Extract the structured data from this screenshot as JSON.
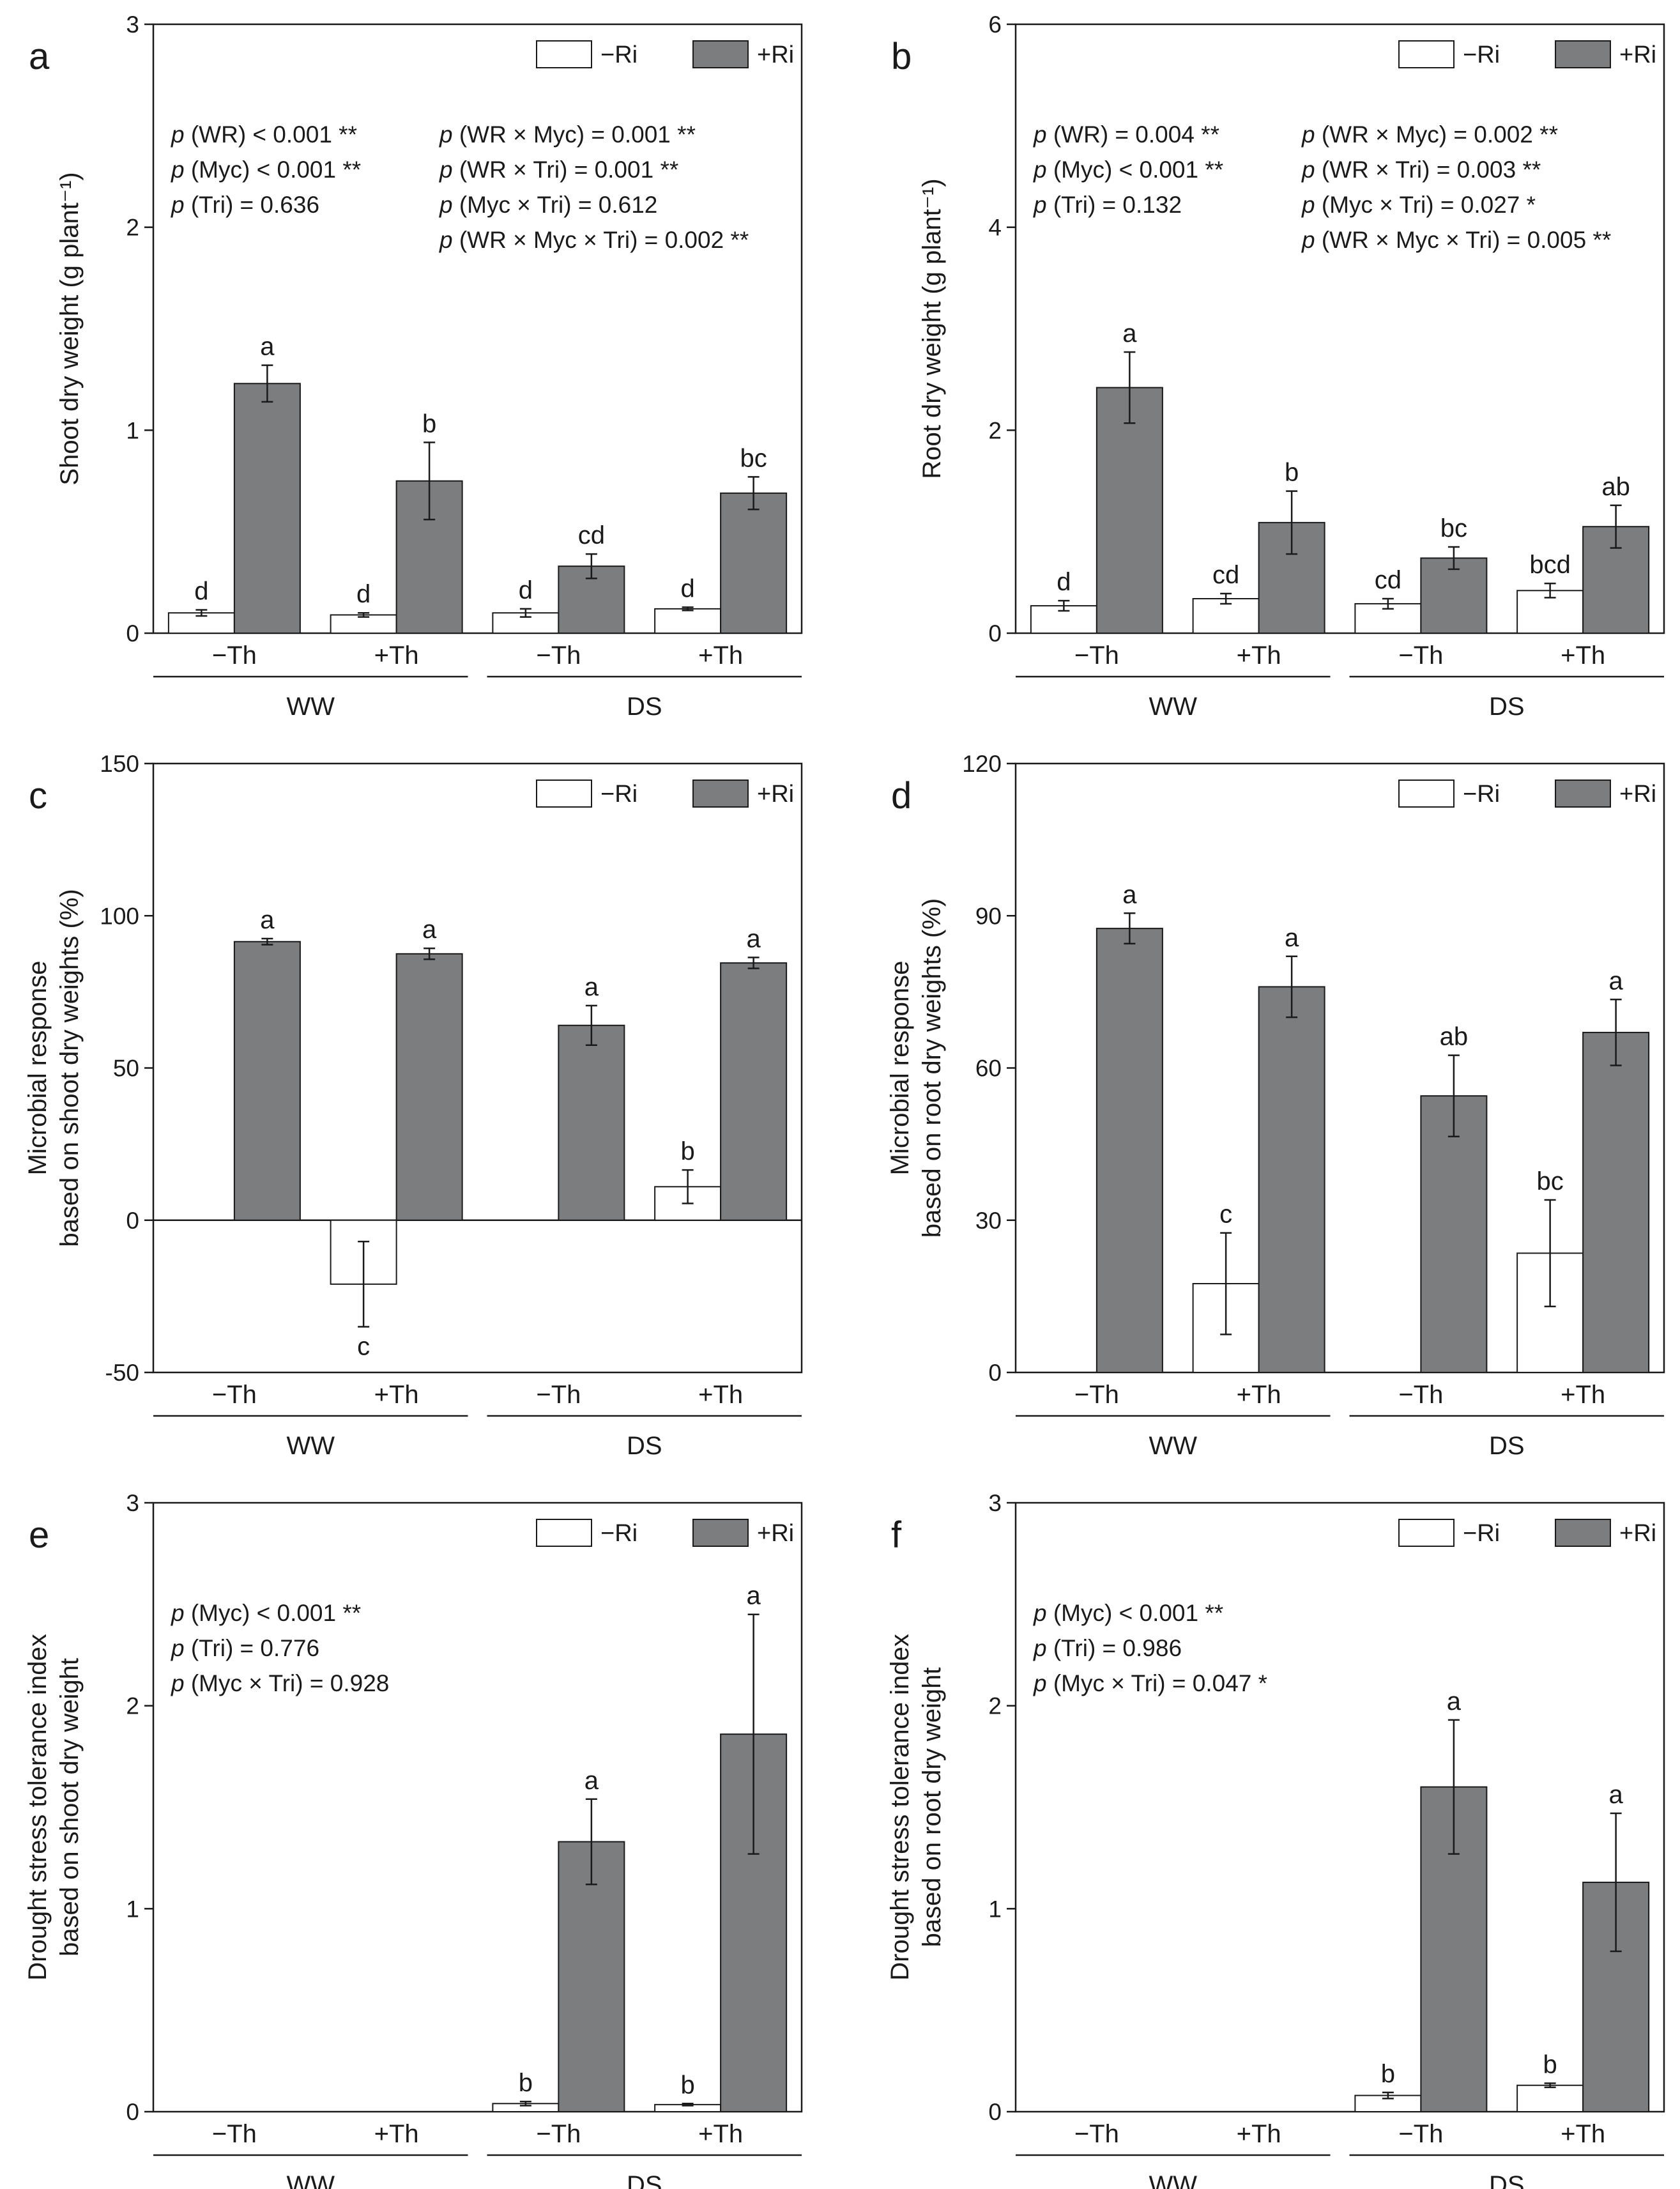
{
  "figure": {
    "series_colors": {
      "-Ri": "#ffffff",
      "+Ri": "#7b7d7f"
    },
    "bar_stroke": "#1a1a1a"
  },
  "chart_data": [
    {
      "id": "a",
      "type": "bar",
      "panel_label": "a",
      "ylabel": "Shoot dry weight (g plant⁻¹)",
      "ylim": [
        0,
        3
      ],
      "yticks": [
        0,
        1,
        2,
        3
      ],
      "yticklabels": [
        "0",
        "1",
        "2",
        "3"
      ],
      "categories": [
        "−Th",
        "+Th",
        "−Th",
        "+Th"
      ],
      "groups": [
        {
          "label": "WW",
          "categories": [
            0,
            1
          ]
        },
        {
          "label": "DS",
          "categories": [
            2,
            3
          ]
        }
      ],
      "legend": [
        "−Ri",
        "+Ri"
      ],
      "series": [
        {
          "name": "−Ri",
          "values": [
            0.1,
            0.09,
            0.1,
            0.12
          ],
          "errors": [
            0.015,
            0.01,
            0.02,
            0.008
          ],
          "letters": [
            "d",
            "d",
            "d",
            "d"
          ]
        },
        {
          "name": "+Ri",
          "values": [
            1.23,
            0.75,
            0.33,
            0.69
          ],
          "errors": [
            0.09,
            0.19,
            0.06,
            0.08
          ],
          "letters": [
            "a",
            "b",
            "cd",
            "bc"
          ]
        }
      ],
      "stats_left": [
        "p (WR) < 0.001 **",
        "p (Myc) < 0.001 **",
        "p (Tri) = 0.636"
      ],
      "stats_right": [
        "p (WR × Myc) = 0.001 **",
        "p (WR × Tri) = 0.001 **",
        "p (Myc × Tri) = 0.612",
        "p (WR × Myc × Tri) = 0.002 **"
      ]
    },
    {
      "id": "b",
      "type": "bar",
      "panel_label": "b",
      "ylabel": "Root dry weight (g plant⁻¹)",
      "ylim": [
        0,
        6
      ],
      "yticks": [
        0,
        2,
        4,
        6
      ],
      "yticklabels": [
        "0",
        "2",
        "4",
        "6"
      ],
      "categories": [
        "−Th",
        "+Th",
        "−Th",
        "+Th"
      ],
      "groups": [
        {
          "label": "WW",
          "categories": [
            0,
            1
          ]
        },
        {
          "label": "DS",
          "categories": [
            2,
            3
          ]
        }
      ],
      "legend": [
        "−Ri",
        "+Ri"
      ],
      "series": [
        {
          "name": "−Ri",
          "values": [
            0.27,
            0.34,
            0.29,
            0.42
          ],
          "errors": [
            0.05,
            0.05,
            0.05,
            0.07
          ],
          "letters": [
            "d",
            "cd",
            "cd",
            "bcd"
          ]
        },
        {
          "name": "+Ri",
          "values": [
            2.42,
            1.09,
            0.74,
            1.05
          ],
          "errors": [
            0.35,
            0.31,
            0.11,
            0.21
          ],
          "letters": [
            "a",
            "b",
            "bc",
            "ab"
          ]
        }
      ],
      "stats_left": [
        "p (WR) = 0.004 **",
        "p (Myc) < 0.001 **",
        "p (Tri) = 0.132"
      ],
      "stats_right": [
        "p (WR × Myc) = 0.002 **",
        "p (WR × Tri) = 0.003 **",
        "p (Myc × Tri) = 0.027 *",
        "p (WR × Myc × Tri) = 0.005 **"
      ]
    },
    {
      "id": "c",
      "type": "bar",
      "panel_label": "c",
      "ylabel_lines": [
        "Microbial response",
        "based on shoot dry weights (%)"
      ],
      "ylim": [
        -50,
        150
      ],
      "yticks": [
        -50,
        0,
        50,
        100,
        150
      ],
      "yticklabels": [
        "-50",
        "0",
        "50",
        "100",
        "150"
      ],
      "zero_line": true,
      "categories": [
        "−Th",
        "+Th",
        "−Th",
        "+Th"
      ],
      "groups": [
        {
          "label": "WW",
          "categories": [
            0,
            1
          ]
        },
        {
          "label": "DS",
          "categories": [
            2,
            3
          ]
        }
      ],
      "legend": [
        "−Ri",
        "+Ri"
      ],
      "series": [
        {
          "name": "−Ri",
          "values": [
            null,
            -21,
            null,
            11
          ],
          "errors": [
            null,
            14,
            null,
            5.5
          ],
          "letters": [
            "",
            "c",
            "",
            "b"
          ]
        },
        {
          "name": "+Ri",
          "values": [
            91.5,
            87.5,
            64,
            84.5
          ],
          "errors": [
            1,
            1.8,
            6.5,
            1.8
          ],
          "letters": [
            "a",
            "a",
            "a",
            "a"
          ]
        }
      ],
      "stats_left": [],
      "stats_right": []
    },
    {
      "id": "d",
      "type": "bar",
      "panel_label": "d",
      "ylabel_lines": [
        "Microbial response",
        "based on root dry weights (%)"
      ],
      "ylim": [
        0,
        120
      ],
      "yticks": [
        0,
        30,
        60,
        90,
        120
      ],
      "yticklabels": [
        "0",
        "30",
        "60",
        "90",
        "120"
      ],
      "categories": [
        "−Th",
        "+Th",
        "−Th",
        "+Th"
      ],
      "groups": [
        {
          "label": "WW",
          "categories": [
            0,
            1
          ]
        },
        {
          "label": "DS",
          "categories": [
            2,
            3
          ]
        }
      ],
      "legend": [
        "−Ri",
        "+Ri"
      ],
      "series": [
        {
          "name": "−Ri",
          "values": [
            null,
            17.5,
            null,
            23.5
          ],
          "errors": [
            null,
            10,
            null,
            10.5
          ],
          "letters": [
            "",
            "c",
            "",
            "bc"
          ]
        },
        {
          "name": "+Ri",
          "values": [
            87.5,
            76,
            54.5,
            67
          ],
          "errors": [
            3,
            6,
            8,
            6.5
          ],
          "letters": [
            "a",
            "a",
            "ab",
            "a"
          ]
        }
      ],
      "stats_left": [],
      "stats_right": []
    },
    {
      "id": "e",
      "type": "bar",
      "panel_label": "e",
      "ylabel_lines": [
        "Drought stress tolerance index",
        "based on shoot dry weight"
      ],
      "ylim": [
        0,
        3
      ],
      "yticks": [
        0,
        1,
        2,
        3
      ],
      "yticklabels": [
        "0",
        "1",
        "2",
        "3"
      ],
      "categories": [
        "−Th",
        "+Th",
        "−Th",
        "+Th"
      ],
      "groups": [
        {
          "label": "WW",
          "categories": [
            0,
            1
          ]
        },
        {
          "label": "DS",
          "categories": [
            2,
            3
          ]
        }
      ],
      "legend": [
        "−Ri",
        "+Ri"
      ],
      "series": [
        {
          "name": "−Ri",
          "values": [
            null,
            null,
            0.04,
            0.035
          ],
          "errors": [
            null,
            null,
            0.01,
            0.005
          ],
          "letters": [
            "",
            "",
            "b",
            "b"
          ]
        },
        {
          "name": "+Ri",
          "values": [
            null,
            null,
            1.33,
            1.86
          ],
          "errors": [
            null,
            null,
            0.21,
            0.59
          ],
          "letters": [
            "",
            "",
            "a",
            "a"
          ]
        }
      ],
      "stats_left": [
        "p (Myc) < 0.001 **",
        "p (Tri) = 0.776",
        "p (Myc × Tri) = 0.928"
      ],
      "stats_right": []
    },
    {
      "id": "f",
      "type": "bar",
      "panel_label": "f",
      "ylabel_lines": [
        "Drought stress tolerance index",
        "based on root dry weight"
      ],
      "ylim": [
        0,
        3
      ],
      "yticks": [
        0,
        1,
        2,
        3
      ],
      "yticklabels": [
        "0",
        "1",
        "2",
        "3"
      ],
      "categories": [
        "−Th",
        "+Th",
        "−Th",
        "+Th"
      ],
      "groups": [
        {
          "label": "WW",
          "categories": [
            0,
            1
          ]
        },
        {
          "label": "DS",
          "categories": [
            2,
            3
          ]
        }
      ],
      "legend": [
        "−Ri",
        "+Ri"
      ],
      "series": [
        {
          "name": "−Ri",
          "values": [
            null,
            null,
            0.08,
            0.13
          ],
          "errors": [
            null,
            null,
            0.015,
            0.01
          ],
          "letters": [
            "",
            "",
            "b",
            "b"
          ]
        },
        {
          "name": "+Ri",
          "values": [
            null,
            null,
            1.6,
            1.13
          ],
          "errors": [
            null,
            null,
            0.33,
            0.34
          ],
          "letters": [
            "",
            "",
            "a",
            "a"
          ]
        }
      ],
      "stats_left": [
        "p (Myc) < 0.001 **",
        "p (Tri) = 0.986",
        "p (Myc × Tri) = 0.047 *"
      ],
      "stats_right": []
    }
  ]
}
